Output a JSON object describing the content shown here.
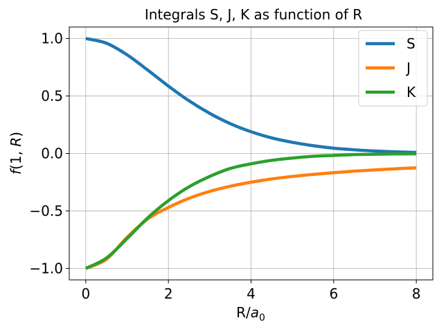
{
  "chart_data": {
    "type": "line",
    "title": "Integrals S, J, K as function of R",
    "xlabel_main": "R/",
    "xlabel_var": "a",
    "xlabel_sub": "0",
    "ylabel_func": "f",
    "ylabel_open": "(1, ",
    "ylabel_var": "R",
    "ylabel_close": ")",
    "xlim": [
      -0.4,
      8.4
    ],
    "ylim": [
      -1.1,
      1.1
    ],
    "xticks": [
      0,
      2,
      4,
      6,
      8
    ],
    "xtick_labels": [
      "0",
      "2",
      "4",
      "6",
      "8"
    ],
    "yticks": [
      -1.0,
      -0.5,
      0.0,
      0.5,
      1.0
    ],
    "ytick_labels": [
      "−1.0",
      "−0.5",
      "0.0",
      "0.5",
      "1.0"
    ],
    "grid": true,
    "legend_position": "top-right",
    "x": [
      0,
      0.5,
      1,
      1.5,
      2,
      2.5,
      3,
      3.5,
      4,
      4.5,
      5,
      5.5,
      6,
      6.5,
      7,
      7.5,
      8
    ],
    "series": [
      {
        "name": "S",
        "color": "#1f77b4",
        "values": [
          1.0,
          0.959,
          0.858,
          0.725,
          0.586,
          0.458,
          0.349,
          0.259,
          0.189,
          0.135,
          0.097,
          0.068,
          0.046,
          0.032,
          0.021,
          0.014,
          0.009
        ]
      },
      {
        "name": "J",
        "color": "#ff7f0e",
        "values": [
          -1.0,
          -0.92,
          -0.73,
          -0.57,
          -0.47,
          -0.39,
          -0.33,
          -0.285,
          -0.25,
          -0.222,
          -0.2,
          -0.182,
          -0.167,
          -0.154,
          -0.143,
          -0.133,
          -0.125
        ]
      },
      {
        "name": "K",
        "color": "#2ca02c",
        "values": [
          -1.0,
          -0.91,
          -0.74,
          -0.56,
          -0.41,
          -0.29,
          -0.2,
          -0.13,
          -0.09,
          -0.06,
          -0.04,
          -0.025,
          -0.017,
          -0.01,
          -0.007,
          -0.004,
          -0.003
        ]
      }
    ]
  }
}
